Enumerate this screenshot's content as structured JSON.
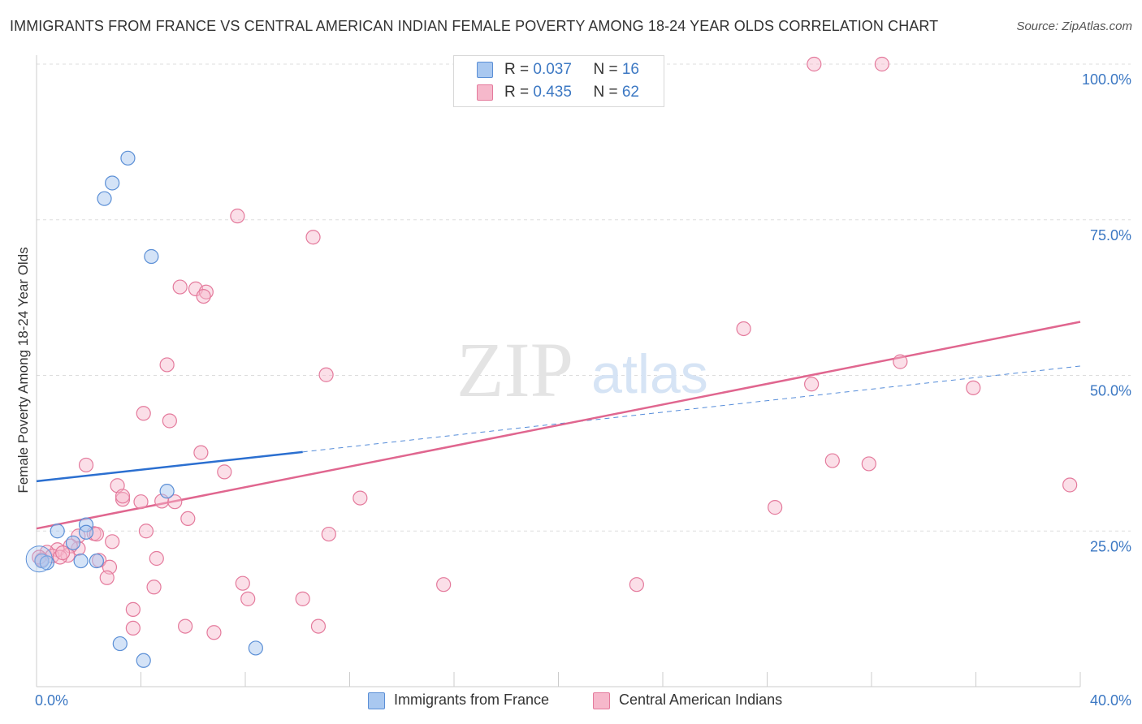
{
  "title": "IMMIGRANTS FROM FRANCE VS CENTRAL AMERICAN INDIAN FEMALE POVERTY AMONG 18-24 YEAR OLDS CORRELATION CHART",
  "source": "Source: ZipAtlas.com",
  "watermark": {
    "zip": "ZIP",
    "atlas": "atlas"
  },
  "legend": {
    "rows": [
      {
        "r_label": "R = ",
        "r_value": "0.037",
        "n_label": "N = ",
        "n_value": "16"
      },
      {
        "r_label": "R = ",
        "r_value": "0.435",
        "n_label": "N = ",
        "n_value": "62"
      }
    ]
  },
  "bottom_legend": [
    "Immigrants from France",
    "Central American Indians"
  ],
  "colors": {
    "france_fill": "#a9c8f0",
    "france_stroke": "#5b8fd6",
    "france_line": "#2b6fd0",
    "cai_fill": "#f6b8cb",
    "cai_stroke": "#e47a9c",
    "cai_line": "#e0668f",
    "tick_label": "#3c78c3",
    "grid": "#dddddd"
  },
  "chart_data": {
    "type": "scatter",
    "xlabel": "",
    "ylabel": "Female Poverty Among 18-24 Year Olds",
    "xlim": [
      0,
      40
    ],
    "ylim": [
      0,
      100
    ],
    "x_tick_labels": [
      "0.0%",
      "40.0%"
    ],
    "y_ticks": [
      25,
      50,
      75,
      100
    ],
    "y_tick_labels": [
      "25.0%",
      "50.0%",
      "75.0%",
      "100.0%"
    ],
    "series": [
      {
        "name": "Immigrants from France",
        "r": 0.037,
        "n": 16,
        "trend": {
          "x0": 0,
          "y0": 33.0,
          "x1": 10.2,
          "y1": 37.7,
          "dashed_to_x": 40,
          "dashed_to_y": 51.5
        },
        "points": [
          [
            3.5,
            84.9
          ],
          [
            2.9,
            80.9
          ],
          [
            2.6,
            78.4
          ],
          [
            4.4,
            69.1
          ],
          [
            5.0,
            31.4
          ],
          [
            1.9,
            26.0
          ],
          [
            1.9,
            24.8
          ],
          [
            0.8,
            25.0
          ],
          [
            1.4,
            23.1
          ],
          [
            2.3,
            20.2
          ],
          [
            1.7,
            20.2
          ],
          [
            0.2,
            20.2
          ],
          [
            0.4,
            19.9
          ],
          [
            3.2,
            6.9
          ],
          [
            4.1,
            4.2
          ],
          [
            8.4,
            6.2
          ]
        ]
      },
      {
        "name": "Central American Indians",
        "r": 0.435,
        "n": 62,
        "trend": {
          "x0": 0,
          "y0": 25.4,
          "x1": 40,
          "y1": 58.6
        },
        "points": [
          [
            29.8,
            100.0
          ],
          [
            32.4,
            100.0
          ],
          [
            7.7,
            75.6
          ],
          [
            10.6,
            72.2
          ],
          [
            5.5,
            64.2
          ],
          [
            6.1,
            63.9
          ],
          [
            6.5,
            63.4
          ],
          [
            6.4,
            62.7
          ],
          [
            27.1,
            57.5
          ],
          [
            5.0,
            51.7
          ],
          [
            11.1,
            50.1
          ],
          [
            33.1,
            52.2
          ],
          [
            29.7,
            48.6
          ],
          [
            35.9,
            48.0
          ],
          [
            4.1,
            43.9
          ],
          [
            5.1,
            42.7
          ],
          [
            6.3,
            37.6
          ],
          [
            1.9,
            35.6
          ],
          [
            7.2,
            34.5
          ],
          [
            30.5,
            36.3
          ],
          [
            31.9,
            35.8
          ],
          [
            39.6,
            32.4
          ],
          [
            3.1,
            32.3
          ],
          [
            3.3,
            30.1
          ],
          [
            4.0,
            29.7
          ],
          [
            4.8,
            29.8
          ],
          [
            3.3,
            30.6
          ],
          [
            12.4,
            30.3
          ],
          [
            28.3,
            28.8
          ],
          [
            5.3,
            29.7
          ],
          [
            5.8,
            27.0
          ],
          [
            4.2,
            25.0
          ],
          [
            2.2,
            24.6
          ],
          [
            1.6,
            24.2
          ],
          [
            2.3,
            24.5
          ],
          [
            11.2,
            24.5
          ],
          [
            2.9,
            23.3
          ],
          [
            1.6,
            22.2
          ],
          [
            1.3,
            22.6
          ],
          [
            0.8,
            22.0
          ],
          [
            0.4,
            21.6
          ],
          [
            0.6,
            21.0
          ],
          [
            1.2,
            21.1
          ],
          [
            0.9,
            20.8
          ],
          [
            2.4,
            20.3
          ],
          [
            4.6,
            20.6
          ],
          [
            0.2,
            20.4
          ],
          [
            2.8,
            19.2
          ],
          [
            2.7,
            17.5
          ],
          [
            4.5,
            16.0
          ],
          [
            7.9,
            16.6
          ],
          [
            15.6,
            16.4
          ],
          [
            23.0,
            16.4
          ],
          [
            8.1,
            14.1
          ],
          [
            10.2,
            14.1
          ],
          [
            3.7,
            12.4
          ],
          [
            3.7,
            9.4
          ],
          [
            5.7,
            9.7
          ],
          [
            6.8,
            8.7
          ],
          [
            10.8,
            9.7
          ],
          [
            0.1,
            20.8
          ],
          [
            1.0,
            21.5
          ]
        ]
      }
    ]
  }
}
